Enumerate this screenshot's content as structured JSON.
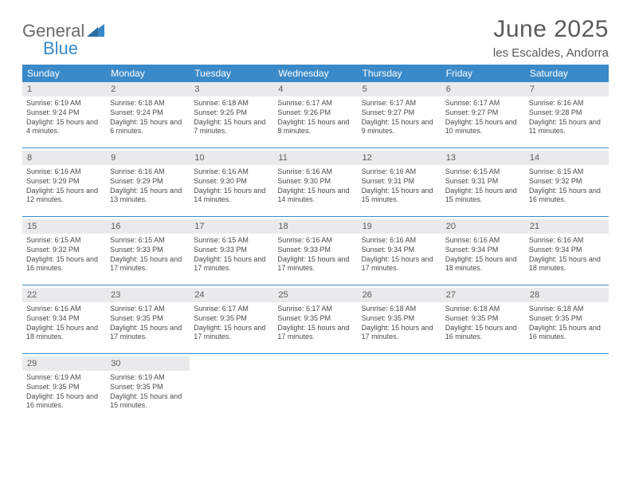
{
  "logo": {
    "text1": "General",
    "text2": "Blue"
  },
  "title": "June 2025",
  "location": "les Escaldes, Andorra",
  "colors": {
    "header_bg": "#3a8ac9",
    "daynum_bg": "#e9eaeb",
    "text": "#5a5a5a",
    "rule": "#3a8ac9"
  },
  "weekdays": [
    "Sunday",
    "Monday",
    "Tuesday",
    "Wednesday",
    "Thursday",
    "Friday",
    "Saturday"
  ],
  "weeks": [
    [
      {
        "n": "1",
        "sr": "6:19 AM",
        "ss": "9:24 PM",
        "dl": "15 hours and 4 minutes."
      },
      {
        "n": "2",
        "sr": "6:18 AM",
        "ss": "9:24 PM",
        "dl": "15 hours and 6 minutes."
      },
      {
        "n": "3",
        "sr": "6:18 AM",
        "ss": "9:25 PM",
        "dl": "15 hours and 7 minutes."
      },
      {
        "n": "4",
        "sr": "6:17 AM",
        "ss": "9:26 PM",
        "dl": "15 hours and 8 minutes."
      },
      {
        "n": "5",
        "sr": "6:17 AM",
        "ss": "9:27 PM",
        "dl": "15 hours and 9 minutes."
      },
      {
        "n": "6",
        "sr": "6:17 AM",
        "ss": "9:27 PM",
        "dl": "15 hours and 10 minutes."
      },
      {
        "n": "7",
        "sr": "6:16 AM",
        "ss": "9:28 PM",
        "dl": "15 hours and 11 minutes."
      }
    ],
    [
      {
        "n": "8",
        "sr": "6:16 AM",
        "ss": "9:29 PM",
        "dl": "15 hours and 12 minutes."
      },
      {
        "n": "9",
        "sr": "6:16 AM",
        "ss": "9:29 PM",
        "dl": "15 hours and 13 minutes."
      },
      {
        "n": "10",
        "sr": "6:16 AM",
        "ss": "9:30 PM",
        "dl": "15 hours and 14 minutes."
      },
      {
        "n": "11",
        "sr": "6:16 AM",
        "ss": "9:30 PM",
        "dl": "15 hours and 14 minutes."
      },
      {
        "n": "12",
        "sr": "6:16 AM",
        "ss": "9:31 PM",
        "dl": "15 hours and 15 minutes."
      },
      {
        "n": "13",
        "sr": "6:15 AM",
        "ss": "9:31 PM",
        "dl": "15 hours and 15 minutes."
      },
      {
        "n": "14",
        "sr": "6:15 AM",
        "ss": "9:32 PM",
        "dl": "15 hours and 16 minutes."
      }
    ],
    [
      {
        "n": "15",
        "sr": "6:15 AM",
        "ss": "9:32 PM",
        "dl": "15 hours and 16 minutes."
      },
      {
        "n": "16",
        "sr": "6:15 AM",
        "ss": "9:33 PM",
        "dl": "15 hours and 17 minutes."
      },
      {
        "n": "17",
        "sr": "6:15 AM",
        "ss": "9:33 PM",
        "dl": "15 hours and 17 minutes."
      },
      {
        "n": "18",
        "sr": "6:16 AM",
        "ss": "9:33 PM",
        "dl": "15 hours and 17 minutes."
      },
      {
        "n": "19",
        "sr": "6:16 AM",
        "ss": "9:34 PM",
        "dl": "15 hours and 17 minutes."
      },
      {
        "n": "20",
        "sr": "6:16 AM",
        "ss": "9:34 PM",
        "dl": "15 hours and 18 minutes."
      },
      {
        "n": "21",
        "sr": "6:16 AM",
        "ss": "9:34 PM",
        "dl": "15 hours and 18 minutes."
      }
    ],
    [
      {
        "n": "22",
        "sr": "6:16 AM",
        "ss": "9:34 PM",
        "dl": "15 hours and 18 minutes."
      },
      {
        "n": "23",
        "sr": "6:17 AM",
        "ss": "9:35 PM",
        "dl": "15 hours and 17 minutes."
      },
      {
        "n": "24",
        "sr": "6:17 AM",
        "ss": "9:35 PM",
        "dl": "15 hours and 17 minutes."
      },
      {
        "n": "25",
        "sr": "6:17 AM",
        "ss": "9:35 PM",
        "dl": "15 hours and 17 minutes."
      },
      {
        "n": "26",
        "sr": "6:18 AM",
        "ss": "9:35 PM",
        "dl": "15 hours and 17 minutes."
      },
      {
        "n": "27",
        "sr": "6:18 AM",
        "ss": "9:35 PM",
        "dl": "15 hours and 16 minutes."
      },
      {
        "n": "28",
        "sr": "6:18 AM",
        "ss": "9:35 PM",
        "dl": "15 hours and 16 minutes."
      }
    ],
    [
      {
        "n": "29",
        "sr": "6:19 AM",
        "ss": "9:35 PM",
        "dl": "15 hours and 16 minutes."
      },
      {
        "n": "30",
        "sr": "6:19 AM",
        "ss": "9:35 PM",
        "dl": "15 hours and 15 minutes."
      },
      null,
      null,
      null,
      null,
      null
    ]
  ],
  "labels": {
    "sunrise": "Sunrise:",
    "sunset": "Sunset:",
    "daylight": "Daylight:"
  }
}
